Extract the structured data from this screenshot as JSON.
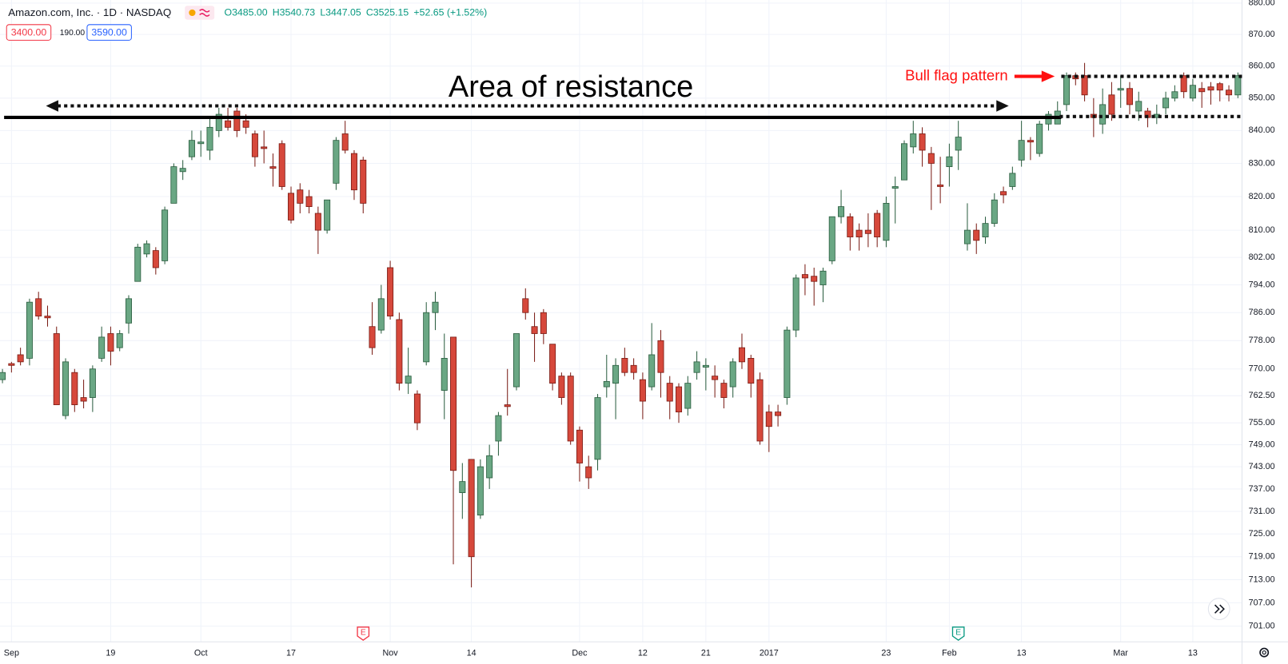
{
  "chart_data": {
    "type": "candlestick",
    "title": "Amazon.com, Inc. · 1D · NASDAQ",
    "ohlc_legend": [
      "O3485.00",
      "H3540.73",
      "L3447.05",
      "C3525.15",
      "+52.65 (+1.52%)"
    ],
    "price_buttons": [
      "3400.00",
      "190.00",
      "3590.00"
    ],
    "annotations": {
      "resistance": "Area of resistance",
      "bull_flag": "Bull flag pattern"
    },
    "categories": [
      null,
      "Sep",
      null,
      null,
      null,
      null,
      null,
      null,
      null,
      null,
      null,
      null,
      "19",
      null,
      null,
      null,
      null,
      null,
      null,
      null,
      null,
      null,
      "Oct",
      null,
      null,
      null,
      null,
      null,
      null,
      null,
      null,
      null,
      "17",
      null,
      null,
      null,
      null,
      null,
      null,
      null,
      null,
      null,
      null,
      "Nov",
      null,
      null,
      null,
      null,
      null,
      null,
      null,
      null,
      "14",
      null,
      null,
      null,
      null,
      null,
      null,
      null,
      null,
      null,
      null,
      null,
      "Dec",
      null,
      null,
      null,
      null,
      null,
      null,
      "12",
      null,
      null,
      null,
      null,
      null,
      null,
      "21",
      null,
      null,
      null,
      null,
      null,
      null,
      "2017",
      null,
      null,
      null,
      null,
      null,
      null,
      null,
      null,
      null,
      null,
      null,
      null,
      "23",
      null,
      null,
      null,
      null,
      null,
      null,
      "Feb",
      null,
      null,
      null,
      null,
      null,
      null,
      null,
      "13",
      null,
      null,
      null,
      null,
      null,
      null,
      null,
      null,
      null,
      null,
      "Mar",
      null,
      null,
      null,
      null,
      null,
      null,
      null,
      "13",
      null,
      null,
      null,
      null,
      null
    ],
    "open": [
      767,
      771.5,
      774,
      773,
      790,
      785,
      780,
      757,
      769,
      762,
      762,
      773,
      780,
      776,
      783,
      795,
      803,
      804,
      801,
      818,
      827.5,
      832,
      836,
      834,
      840,
      843,
      846,
      843,
      839,
      835,
      829,
      836,
      821,
      822,
      820,
      815,
      810,
      824,
      839,
      833,
      831,
      782,
      781,
      799,
      784,
      766,
      763,
      772,
      786,
      764,
      779,
      736,
      745,
      730,
      740,
      750,
      760,
      765,
      790,
      782,
      786,
      777,
      768,
      768,
      753,
      743,
      745,
      765,
      766,
      773,
      771,
      767,
      765,
      778,
      766,
      765,
      759,
      769,
      770.5,
      768,
      766,
      765,
      776,
      773,
      767,
      758,
      758,
      762,
      781,
      797,
      796.5,
      794,
      801,
      814,
      814,
      810,
      810,
      815,
      807,
      822.5,
      825,
      835,
      839,
      833,
      823.5,
      829,
      834,
      806,
      810,
      808,
      812,
      821.5,
      823,
      831,
      837,
      833,
      842,
      842,
      848,
      857,
      857,
      845,
      842,
      851,
      852.5,
      853,
      846,
      846,
      844,
      847,
      850,
      857,
      850,
      853,
      853.5,
      854.5,
      852.5,
      851
    ],
    "high": [
      770,
      772,
      776,
      790,
      792,
      788,
      782,
      773,
      770,
      767,
      771,
      782,
      782,
      781,
      791,
      806,
      807,
      805,
      817,
      830,
      831,
      840,
      840,
      844,
      847,
      847,
      847,
      845,
      840,
      840,
      833,
      837,
      823,
      824,
      822,
      817,
      819,
      838,
      843,
      834,
      832,
      789,
      794,
      801,
      786,
      776,
      764,
      789,
      792,
      780,
      779,
      744,
      745,
      745,
      749,
      758,
      770,
      780,
      793,
      786,
      787,
      777,
      769,
      769,
      754,
      746,
      763,
      774,
      773,
      776,
      773,
      769,
      783,
      781,
      768,
      766,
      768,
      775,
      773,
      771,
      767,
      773,
      780,
      774,
      769,
      760,
      760,
      782,
      797,
      800,
      799,
      799,
      814,
      822,
      815,
      812,
      815,
      816,
      820,
      826,
      837,
      843,
      841,
      835,
      832,
      836,
      843,
      818,
      812,
      814,
      821,
      823,
      829,
      843,
      838,
      843,
      846,
      849,
      858,
      858,
      861,
      850,
      853,
      855,
      857,
      855,
      852,
      847,
      848,
      852,
      854,
      858,
      856,
      855,
      855,
      855,
      854,
      858
    ],
    "low": [
      766,
      769,
      771,
      771,
      784,
      782,
      760,
      756,
      758,
      759,
      758,
      772,
      771,
      775,
      780,
      795,
      802,
      797,
      800,
      818,
      825,
      831,
      832,
      831,
      838,
      840,
      838,
      839,
      829,
      830,
      823,
      822,
      812,
      815,
      815,
      803,
      809,
      822,
      833,
      819,
      815,
      774,
      780,
      784,
      764,
      763,
      753,
      771,
      781,
      756,
      717,
      729,
      711,
      729,
      737,
      746,
      757,
      764,
      784,
      772,
      777,
      764,
      760,
      749,
      739,
      737,
      742,
      762,
      756,
      768,
      767,
      756,
      764,
      762,
      756,
      755,
      757,
      767,
      764,
      762,
      759,
      762,
      770,
      762,
      749,
      747,
      754,
      760,
      779,
      791,
      788,
      789,
      800,
      812,
      804,
      804,
      805,
      805,
      805,
      812,
      825,
      833,
      829,
      816,
      818,
      823,
      828,
      804,
      803,
      806,
      811,
      818,
      822,
      829,
      831,
      832,
      840,
      842,
      846,
      854,
      849,
      838,
      839,
      843,
      847,
      845,
      843,
      841,
      842,
      845,
      849,
      850,
      849,
      847,
      848,
      849,
      849,
      850
    ],
    "close": [
      769,
      771,
      772,
      789,
      785,
      784.5,
      760,
      772,
      760,
      761,
      770,
      779,
      775,
      780,
      790,
      805,
      806,
      799,
      816,
      829,
      828.5,
      837,
      836.5,
      841,
      845,
      841,
      840,
      841,
      832,
      834.5,
      828.5,
      823,
      813,
      818,
      817,
      810,
      819,
      837,
      834,
      822,
      818,
      776,
      790,
      785,
      766,
      768,
      755,
      786,
      789,
      773,
      742,
      739,
      719,
      743,
      746,
      757,
      759.5,
      780,
      786,
      780,
      780,
      766,
      762,
      750,
      744,
      740,
      762,
      766.5,
      771,
      769,
      769,
      761,
      774,
      769,
      761,
      758,
      766,
      772,
      771,
      767,
      762,
      772,
      772,
      766,
      750,
      754,
      757,
      781,
      796,
      796,
      795,
      798,
      814,
      817,
      808,
      808,
      809,
      808,
      818,
      823,
      836,
      839,
      834,
      830,
      823,
      832,
      838,
      810,
      807,
      812,
      819,
      820.5,
      827,
      837,
      836.5,
      842,
      845,
      846,
      857,
      856,
      851,
      844,
      848,
      845,
      853,
      848,
      849,
      844,
      845,
      850,
      852,
      852,
      854,
      852,
      852.5,
      852.5,
      851,
      857
    ],
    "up_color": "#6aa784",
    "up_border": "#2b5e40",
    "down_color": "#d6483b",
    "down_border": "#7a1c15",
    "log": true,
    "ylim": [
      697,
      881
    ],
    "yticks": [
      {
        "value": 880,
        "label": "880.00"
      },
      {
        "value": 870,
        "label": "870.00"
      },
      {
        "value": 860,
        "label": "860.00"
      },
      {
        "value": 850,
        "label": "850.00"
      },
      {
        "value": 840,
        "label": "840.00"
      },
      {
        "value": 830,
        "label": "830.00"
      },
      {
        "value": 820,
        "label": "820.00"
      },
      {
        "value": 810,
        "label": "810.00"
      },
      {
        "value": 802,
        "label": "802.00"
      },
      {
        "value": 794,
        "label": "794.00"
      },
      {
        "value": 786,
        "label": "786.00"
      },
      {
        "value": 778,
        "label": "778.00"
      },
      {
        "value": 770,
        "label": "770.00"
      },
      {
        "value": 762.5,
        "label": "762.50"
      },
      {
        "value": 755,
        "label": "755.00"
      },
      {
        "value": 749,
        "label": "749.00"
      },
      {
        "value": 743,
        "label": "743.00"
      },
      {
        "value": 737,
        "label": "737.00"
      },
      {
        "value": 731,
        "label": "731.00"
      },
      {
        "value": 725,
        "label": "725.00"
      },
      {
        "value": 719,
        "label": "719.00"
      },
      {
        "value": 713,
        "label": "713.00"
      },
      {
        "value": 707,
        "label": "707.00"
      },
      {
        "value": 701,
        "label": "701.00"
      }
    ],
    "grid": true,
    "events": [
      {
        "index": 40,
        "label": "E",
        "color": "#f23645"
      },
      {
        "index": 106,
        "label": "E",
        "color": "#089981"
      }
    ]
  }
}
